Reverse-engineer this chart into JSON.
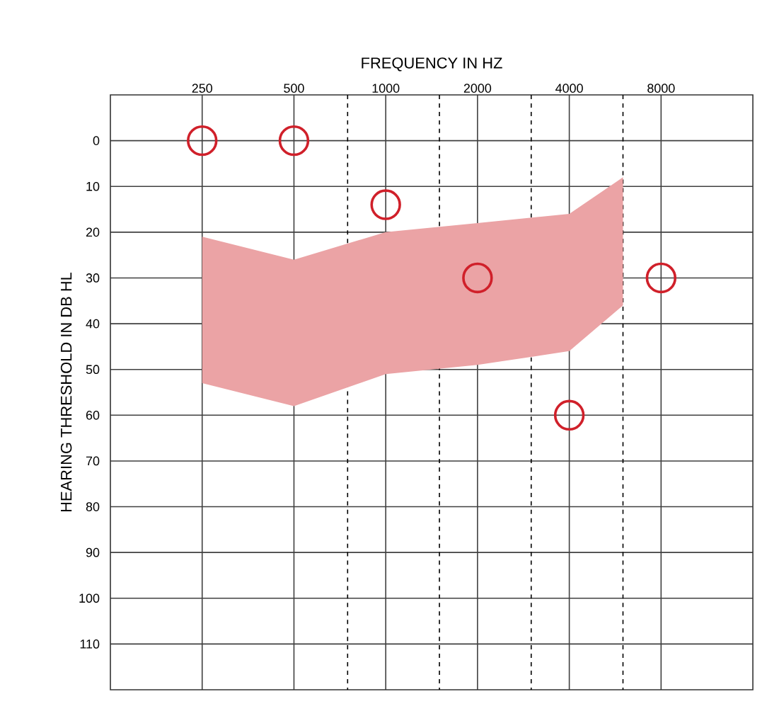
{
  "chart_data": {
    "type": "scatter",
    "xlabel": "FREQUENCY IN HZ",
    "ylabel": "HEARING THRESHOLD IN DB HL",
    "log": "x",
    "xlim": [
      125,
      16000
    ],
    "xticks": [
      250,
      500,
      1000,
      2000,
      4000,
      8000
    ],
    "ylim": [
      120,
      -10
    ],
    "yticks": [
      0,
      10,
      20,
      30,
      40,
      50,
      60,
      70,
      80,
      90,
      100,
      110
    ],
    "grid": true,
    "marker": "circle",
    "series": [
      {
        "type": "area",
        "color": "#eba3a5",
        "x": [
          250,
          500,
          1000,
          2000,
          4000,
          6000
        ],
        "marker": "none",
        "values": [
          null,
          null,
          null,
          null,
          null,
          null
        ],
        "lower": [
          53,
          58,
          51,
          49,
          46,
          36
        ],
        "upper": [
          21,
          26,
          20,
          18,
          16,
          8
        ]
      },
      {
        "color": "#d0202a",
        "x": [
          250,
          500,
          1000,
          2000,
          4000,
          8000
        ],
        "values": [
          0,
          0,
          14,
          30,
          60,
          30
        ]
      }
    ],
    "ref_lines": [
      {
        "axis": "x",
        "value": 750,
        "line_style": "dashed",
        "color": "#000000"
      },
      {
        "axis": "x",
        "value": 1500,
        "line_style": "dashed",
        "color": "#000000"
      },
      {
        "axis": "x",
        "value": 3000,
        "line_style": "dashed",
        "color": "#000000"
      },
      {
        "axis": "x",
        "value": 6000,
        "line_style": "dashed",
        "color": "#000000"
      }
    ]
  }
}
